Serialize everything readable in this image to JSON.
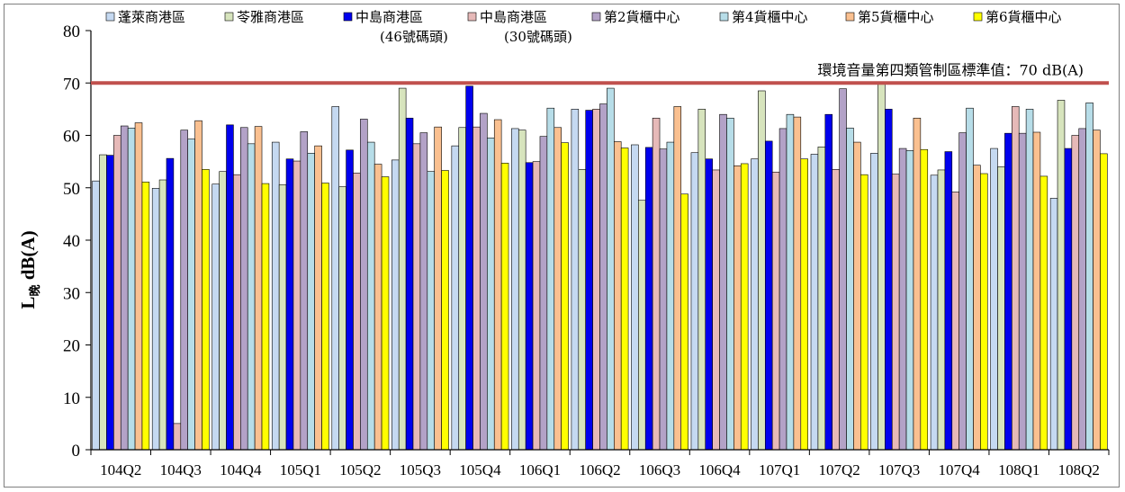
{
  "chart_data": {
    "type": "bar",
    "title": "",
    "xlabel": "",
    "ylabel_main": "L",
    "ylabel_sub": "晚",
    "ylabel_unit": " dB(A)",
    "ylim": [
      0,
      80
    ],
    "yticks": [
      0,
      10,
      20,
      30,
      40,
      50,
      60,
      70,
      80
    ],
    "grid": false,
    "legend_position": "top",
    "categories": [
      "104Q2",
      "104Q3",
      "104Q4",
      "105Q1",
      "105Q2",
      "105Q3",
      "105Q4",
      "106Q1",
      "106Q2",
      "106Q3",
      "106Q4",
      "107Q1",
      "107Q2",
      "107Q3",
      "107Q4",
      "108Q1",
      "108Q2"
    ],
    "series": [
      {
        "name": "蓬萊商港區",
        "name_line2": "",
        "color": "#c5d9f1",
        "values": [
          51.3,
          49.9,
          50.7,
          58.7,
          65.5,
          55.3,
          58.0,
          61.3,
          65.0,
          58.2,
          56.7,
          55.5,
          56.4,
          56.6,
          52.4,
          57.5,
          48.0
        ]
      },
      {
        "name": "苓雅商港區",
        "name_line2": "",
        "color": "#d7e4bd",
        "values": [
          56.3,
          51.5,
          53.1,
          50.6,
          50.2,
          69.0,
          61.5,
          61.0,
          53.5,
          47.6,
          65.0,
          68.5,
          57.8,
          70.2,
          53.4,
          54.0,
          66.7
        ]
      },
      {
        "name": "中島商港區",
        "name_line2": "(46號碼頭)",
        "color": "#0000ee",
        "values": [
          56.2,
          55.6,
          62.0,
          55.5,
          57.2,
          63.3,
          69.4,
          54.8,
          64.8,
          57.7,
          55.5,
          58.9,
          64.0,
          65.0,
          56.9,
          60.4,
          57.5
        ]
      },
      {
        "name": "中島商港區",
        "name_line2": "(30號碼頭)",
        "color": "#e6b9b8",
        "values": [
          60.0,
          5.0,
          52.5,
          55.1,
          52.8,
          58.4,
          61.6,
          55.0,
          65.0,
          63.3,
          53.4,
          53.0,
          53.5,
          52.6,
          49.2,
          65.5,
          60.0
        ]
      },
      {
        "name": "第2貨櫃中心",
        "name_line2": "",
        "color": "#b3a2c7",
        "values": [
          61.8,
          61.0,
          61.5,
          60.7,
          63.1,
          60.5,
          64.2,
          59.8,
          66.0,
          57.4,
          64.0,
          61.3,
          68.9,
          57.5,
          60.5,
          60.4,
          61.3
        ]
      },
      {
        "name": "第4貨櫃中心",
        "name_line2": "",
        "color": "#b7dde8",
        "values": [
          61.4,
          59.3,
          58.4,
          56.6,
          58.7,
          53.1,
          59.5,
          65.2,
          69.0,
          58.7,
          63.3,
          64.0,
          61.4,
          57.1,
          65.2,
          65.0,
          66.2
        ]
      },
      {
        "name": "第5貨櫃中心",
        "name_line2": "",
        "color": "#fac090",
        "values": [
          62.4,
          62.8,
          61.7,
          58.0,
          54.5,
          61.6,
          63.0,
          61.5,
          58.8,
          65.5,
          54.2,
          63.5,
          58.7,
          63.3,
          54.3,
          60.6,
          61.0
        ]
      },
      {
        "name": "第6貨櫃中心",
        "name_line2": "",
        "color": "#ffff00",
        "values": [
          51.1,
          53.5,
          50.8,
          50.9,
          52.1,
          53.3,
          54.7,
          58.6,
          57.6,
          48.8,
          54.6,
          55.5,
          52.5,
          57.3,
          52.7,
          52.2,
          56.5
        ]
      }
    ],
    "reference_line": {
      "value": 70,
      "color": "#c0504d",
      "label": "環境音量第四類管制區標準值：70 dB(A)"
    }
  }
}
